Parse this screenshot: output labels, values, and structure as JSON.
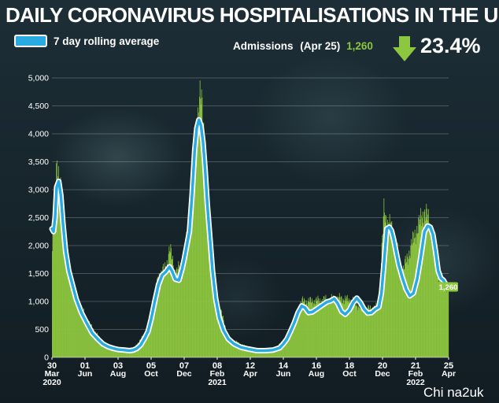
{
  "header": {
    "title": "DAILY CORONAVIRUS HOSPITALISATIONS IN THE UK",
    "legend_label": "7 day rolling average",
    "admissions_label": "Admissions",
    "admissions_date": "(Apr 25)",
    "admissions_value": "1,260",
    "change_percent": "23.4%",
    "change_direction": "down"
  },
  "credit": "Chi na2uk",
  "colors": {
    "background": "#16242b",
    "bars": "#8dc63f",
    "line": "#29aae1",
    "line_outline": "#ffffff",
    "highlight": "#8dc63f",
    "arrow": "#8dc63f"
  },
  "chart_data": {
    "type": "area",
    "title": "DAILY CORONAVIRUS HOSPITALISATIONS IN THE UK",
    "xlabel": "",
    "ylabel": "",
    "ylim": [
      0,
      5000
    ],
    "yticks": [
      0,
      500,
      1000,
      1500,
      2000,
      2500,
      3000,
      3500,
      4000,
      4500,
      5000
    ],
    "ytick_labels": [
      "0",
      "500",
      "1,000",
      "1,500",
      "2,000",
      "2,500",
      "3,000",
      "3,500",
      "4,000",
      "4,500",
      "5,000"
    ],
    "x_domain": [
      "2020-03-30",
      "2022-04-25"
    ],
    "xticks": [
      {
        "date": "2020-03-30",
        "day": "30",
        "month": "Mar",
        "year": "2020"
      },
      {
        "date": "2020-06-01",
        "day": "01",
        "month": "Jun"
      },
      {
        "date": "2020-08-03",
        "day": "03",
        "month": "Aug"
      },
      {
        "date": "2020-10-05",
        "day": "05",
        "month": "Oct"
      },
      {
        "date": "2020-12-07",
        "day": "07",
        "month": "Dec"
      },
      {
        "date": "2021-02-08",
        "day": "08",
        "month": "Feb",
        "year": "2021"
      },
      {
        "date": "2021-04-12",
        "day": "12",
        "month": "Apr"
      },
      {
        "date": "2021-06-14",
        "day": "14",
        "month": "Jun"
      },
      {
        "date": "2021-08-16",
        "day": "16",
        "month": "Aug"
      },
      {
        "date": "2021-10-18",
        "day": "18",
        "month": "Oct"
      },
      {
        "date": "2021-12-20",
        "day": "20",
        "month": "Dec"
      },
      {
        "date": "2022-02-21",
        "day": "21",
        "month": "Feb",
        "year": "2022"
      },
      {
        "date": "2022-04-25",
        "day": "25",
        "month": "Apr"
      }
    ],
    "legend": {
      "position": "top-left",
      "entries": [
        "7 day rolling average"
      ]
    },
    "grid": {
      "y": true,
      "x": false
    },
    "series": [
      {
        "name": "7 day rolling average",
        "kind": "line",
        "x": [
          "2020-03-30",
          "2020-04-02",
          "2020-04-05",
          "2020-04-08",
          "2020-04-12",
          "2020-04-16",
          "2020-04-20",
          "2020-04-25",
          "2020-05-01",
          "2020-05-08",
          "2020-05-15",
          "2020-05-25",
          "2020-06-05",
          "2020-06-15",
          "2020-06-25",
          "2020-07-05",
          "2020-07-15",
          "2020-07-25",
          "2020-08-03",
          "2020-08-15",
          "2020-08-25",
          "2020-09-01",
          "2020-09-08",
          "2020-09-15",
          "2020-09-22",
          "2020-09-29",
          "2020-10-05",
          "2020-10-12",
          "2020-10-19",
          "2020-10-26",
          "2020-11-02",
          "2020-11-09",
          "2020-11-14",
          "2020-11-20",
          "2020-11-27",
          "2020-12-03",
          "2020-12-07",
          "2020-12-12",
          "2020-12-17",
          "2020-12-22",
          "2020-12-27",
          "2020-12-31",
          "2021-01-04",
          "2021-01-08",
          "2021-01-12",
          "2021-01-16",
          "2021-01-20",
          "2021-01-25",
          "2021-01-30",
          "2021-02-05",
          "2021-02-12",
          "2021-02-20",
          "2021-03-01",
          "2021-03-12",
          "2021-03-25",
          "2021-04-08",
          "2021-04-25",
          "2021-05-10",
          "2021-05-25",
          "2021-06-07",
          "2021-06-14",
          "2021-06-21",
          "2021-06-28",
          "2021-07-05",
          "2021-07-12",
          "2021-07-19",
          "2021-07-25",
          "2021-08-01",
          "2021-08-08",
          "2021-08-16",
          "2021-08-25",
          "2021-09-05",
          "2021-09-12",
          "2021-09-19",
          "2021-09-26",
          "2021-10-03",
          "2021-10-10",
          "2021-10-18",
          "2021-10-25",
          "2021-11-01",
          "2021-11-08",
          "2021-11-15",
          "2021-11-22",
          "2021-11-29",
          "2021-12-06",
          "2021-12-13",
          "2021-12-18",
          "2021-12-23",
          "2021-12-28",
          "2022-01-02",
          "2022-01-06",
          "2022-01-10",
          "2022-01-15",
          "2022-01-20",
          "2022-01-27",
          "2022-02-03",
          "2022-02-10",
          "2022-02-17",
          "2022-02-24",
          "2022-03-03",
          "2022-03-10",
          "2022-03-16",
          "2022-03-21",
          "2022-03-26",
          "2022-03-31",
          "2022-04-05",
          "2022-04-10",
          "2022-04-15",
          "2022-04-20",
          "2022-04-25"
        ],
        "y": [
          2300,
          2250,
          2500,
          3050,
          3150,
          2900,
          2400,
          1900,
          1550,
          1300,
          1050,
          800,
          600,
          430,
          330,
          240,
          190,
          160,
          140,
          130,
          120,
          130,
          160,
          220,
          330,
          460,
          680,
          1000,
          1300,
          1470,
          1530,
          1620,
          1540,
          1400,
          1380,
          1580,
          1750,
          2000,
          2250,
          2900,
          3700,
          4100,
          4250,
          4150,
          3850,
          3350,
          2750,
          2150,
          1550,
          1050,
          700,
          480,
          330,
          240,
          180,
          150,
          120,
          120,
          130,
          170,
          240,
          330,
          470,
          620,
          800,
          920,
          890,
          800,
          810,
          860,
          920,
          990,
          1010,
          1050,
          960,
          820,
          770,
          850,
          980,
          1060,
          980,
          860,
          790,
          800,
          860,
          900,
          1150,
          1700,
          2300,
          2330,
          2270,
          2120,
          1880,
          1650,
          1420,
          1220,
          1100,
          1150,
          1400,
          1800,
          2250,
          2350,
          2330,
          2200,
          1900,
          1550,
          1420,
          1380,
          1300,
          1260
        ]
      },
      {
        "name": "Admissions",
        "kind": "bar",
        "note_points": "daily admissions bars",
        "x": [
          "2020-03-30",
          "2020-04-03",
          "2020-04-08",
          "2020-04-12",
          "2020-04-20",
          "2020-05-01",
          "2020-05-15",
          "2020-06-05",
          "2020-07-05",
          "2020-08-03",
          "2020-09-01",
          "2020-09-29",
          "2020-10-19",
          "2020-11-02",
          "2020-11-09",
          "2020-11-20",
          "2020-12-03",
          "2020-12-17",
          "2020-12-27",
          "2021-01-04",
          "2021-01-08",
          "2021-01-12",
          "2021-01-20",
          "2021-02-05",
          "2021-03-01",
          "2021-04-08",
          "2021-05-25",
          "2021-06-21",
          "2021-07-19",
          "2021-08-08",
          "2021-09-05",
          "2021-10-03",
          "2021-10-25",
          "2021-11-15",
          "2021-12-13",
          "2021-12-23",
          "2021-12-28",
          "2022-01-02",
          "2022-01-10",
          "2022-01-27",
          "2022-02-24",
          "2022-03-10",
          "2022-03-16",
          "2022-03-21",
          "2022-03-31",
          "2022-04-10",
          "2022-04-20",
          "2022-04-25"
        ],
        "y": [
          1900,
          2600,
          3550,
          3250,
          2500,
          1650,
          1100,
          650,
          260,
          150,
          150,
          500,
          1450,
          1600,
          1950,
          1500,
          1650,
          2350,
          3900,
          4450,
          4600,
          4300,
          2900,
          1150,
          350,
          170,
          140,
          340,
          1000,
          1000,
          1030,
          1050,
          1000,
          850,
          900,
          2600,
          2450,
          2380,
          2200,
          1500,
          2300,
          2600,
          2500,
          2400,
          1650,
          1400,
          1300,
          1200
        ]
      }
    ],
    "annotations": [
      {
        "x": "2022-04-25",
        "y": 1260,
        "text": "1,260"
      }
    ]
  }
}
